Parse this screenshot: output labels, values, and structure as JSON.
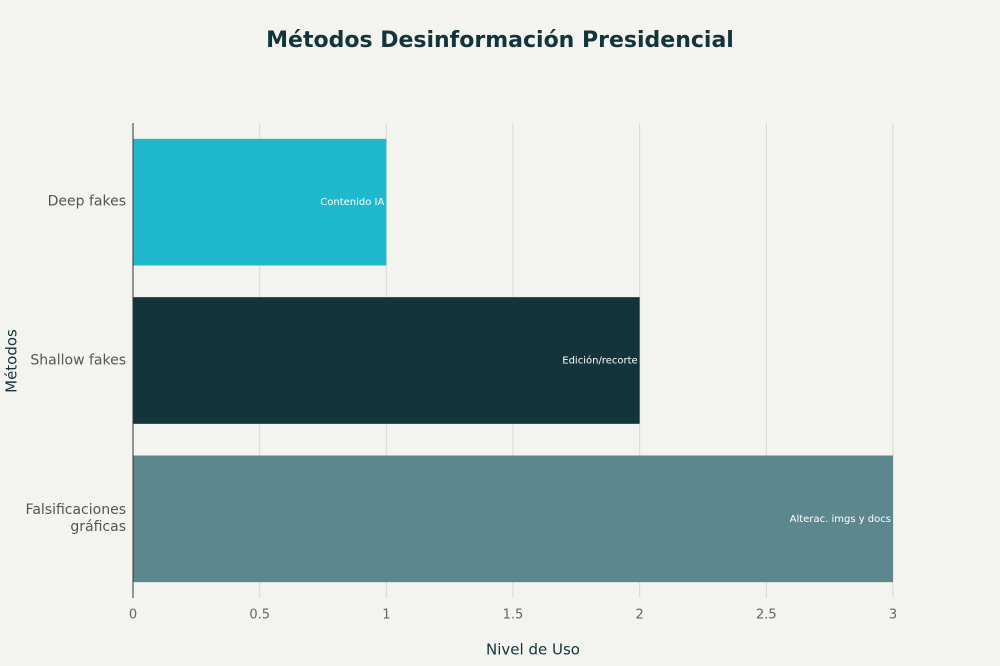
{
  "chart_data": {
    "type": "hbar",
    "title": "Métodos Desinformación Presidencial",
    "x_label": "Nivel de Uso",
    "y_label": "Métodos",
    "categories": [
      "Deep fakes",
      "Shallow fakes",
      "Falsificaciones gráficas"
    ],
    "values": [
      1,
      2,
      3
    ],
    "colors": [
      "#1fb8cd",
      "#13343b",
      "#5d878f"
    ],
    "annotations": [
      "Contenido IA",
      "Edición/recorte",
      "Alterac. imgs y docs"
    ],
    "xlim": [
      0,
      3
    ],
    "xticks": [
      0,
      0.5,
      1,
      1.5,
      2,
      2.5,
      3
    ],
    "grid": true
  }
}
